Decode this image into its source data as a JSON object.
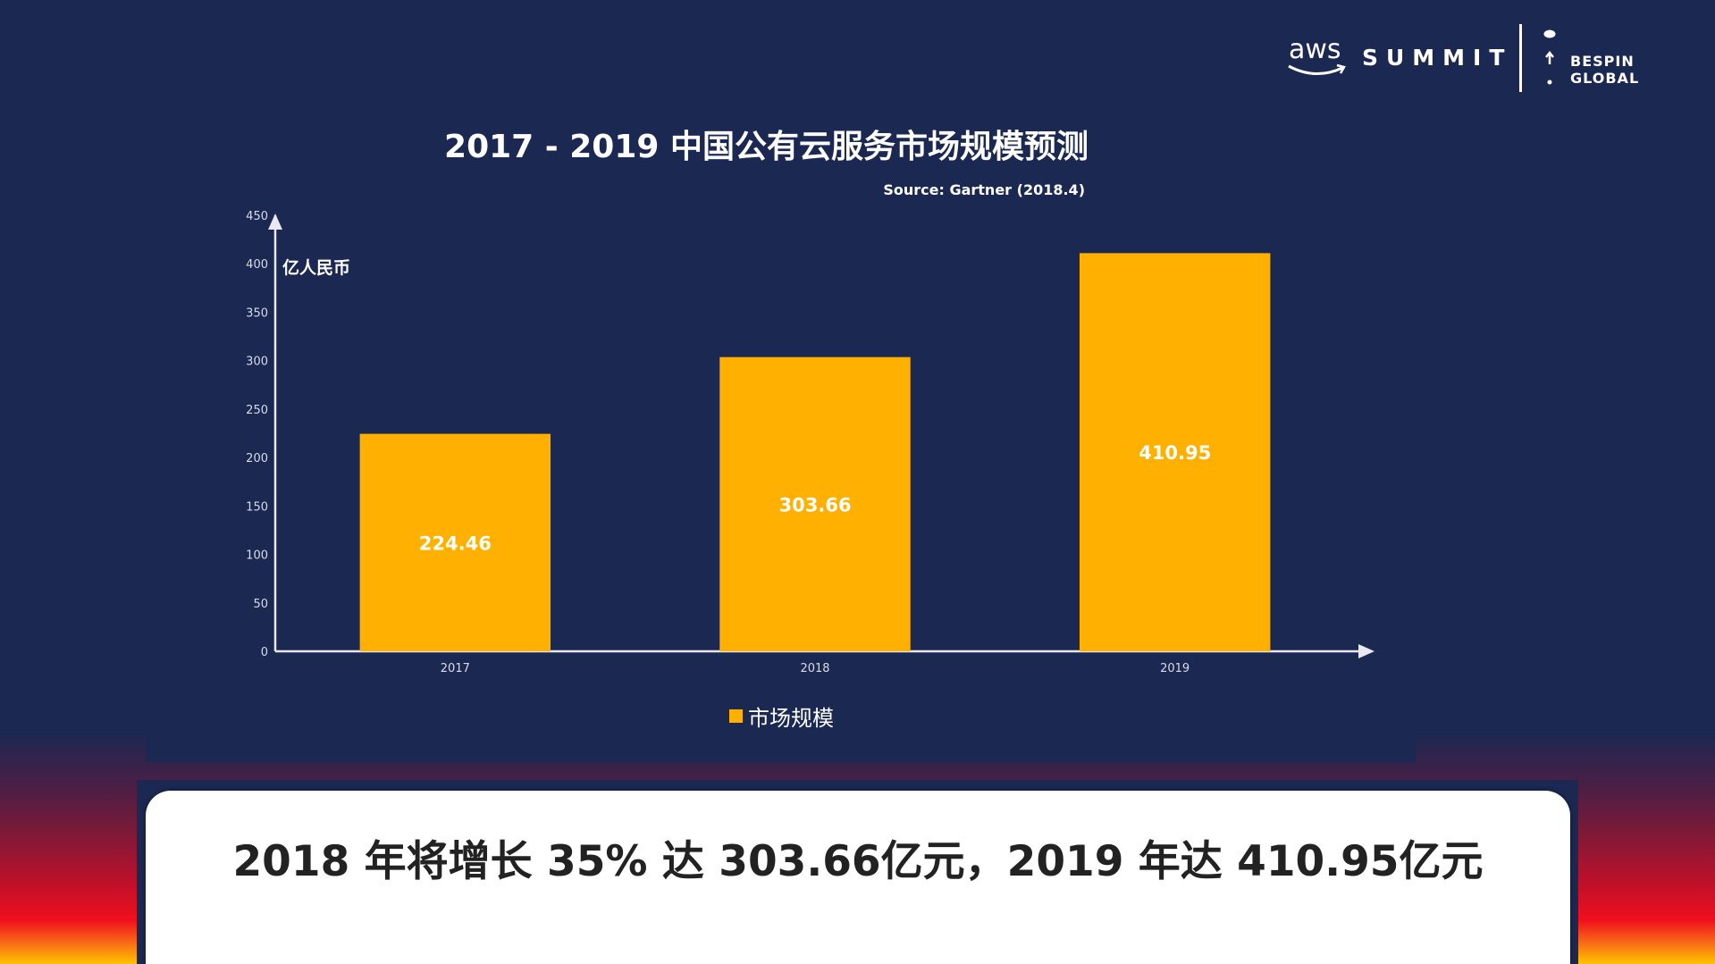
{
  "header": {
    "aws_logo": "aws",
    "summit": "SUMMIT",
    "partner": "BESPIN GLOBAL"
  },
  "chart_data": {
    "type": "bar",
    "title": "2017 - 2019 中国公有云服务市场规模预测",
    "source": "Source: Gartner (2018.4)",
    "ylabel": "亿人民币",
    "xlabel": "",
    "categories": [
      "2017",
      "2018",
      "2019"
    ],
    "series": [
      {
        "name": "市场规模",
        "values": [
          224.46,
          303.66,
          410.95
        ],
        "color": "#ffb000"
      }
    ],
    "data_labels": [
      "224.46",
      "303.66",
      "410.95"
    ],
    "ylim": [
      0,
      450
    ],
    "yticks": [
      "0",
      "50",
      "100",
      "150",
      "200",
      "250",
      "300",
      "350",
      "400",
      "450"
    ],
    "grid": false,
    "legend": "bottom"
  },
  "summary": "2018 年将增长 35% 达 303.66亿元，2019 年达 410.95亿元",
  "colors": {
    "background": "#1b2852",
    "bar": "#ffb000",
    "axis": "#e8e8ee"
  }
}
